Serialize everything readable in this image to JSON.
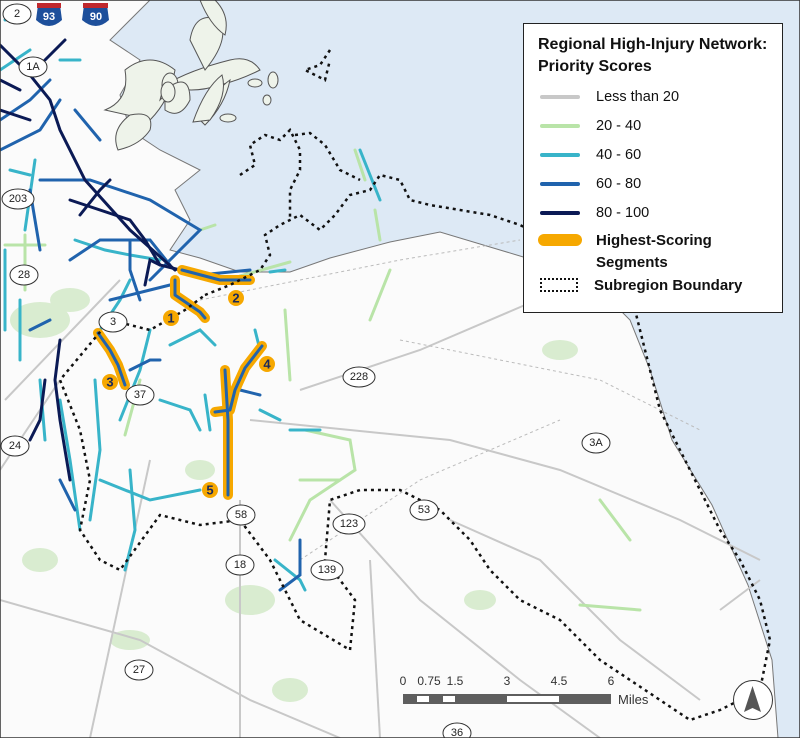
{
  "legend": {
    "title_line1": "Regional High-Injury Network:",
    "title_line2": "Priority Scores",
    "items": [
      {
        "label": "Less than 20",
        "color": "#c8c8c8"
      },
      {
        "label": "20 - 40",
        "color": "#b9e4a8"
      },
      {
        "label": "40 - 60",
        "color": "#38b4c9"
      },
      {
        "label": "60 - 80",
        "color": "#2063ad"
      },
      {
        "label": "80 - 100",
        "color": "#0b1a55"
      }
    ],
    "highest_label_line1": "Highest-Scoring",
    "highest_label_line2": "Segments",
    "highest_color": "#f6a800",
    "boundary_label": "Subregion Boundary"
  },
  "interstates": [
    {
      "label": "93"
    },
    {
      "label": "90"
    }
  ],
  "route_shields": [
    {
      "label": "2"
    },
    {
      "label": "1A"
    },
    {
      "label": "203"
    },
    {
      "label": "28"
    },
    {
      "label": "3"
    },
    {
      "label": "37"
    },
    {
      "label": "24"
    },
    {
      "label": "228"
    },
    {
      "label": "3A"
    },
    {
      "label": "53"
    },
    {
      "label": "58"
    },
    {
      "label": "123"
    },
    {
      "label": "18"
    },
    {
      "label": "139"
    },
    {
      "label": "27"
    },
    {
      "label": "36"
    }
  ],
  "segment_markers": [
    {
      "label": "1"
    },
    {
      "label": "2"
    },
    {
      "label": "3"
    },
    {
      "label": "4"
    },
    {
      "label": "5"
    }
  ],
  "scale_bar": {
    "ticks": [
      "0",
      "0.75",
      "1.5",
      "3",
      "4.5",
      "6"
    ],
    "units": "Miles"
  },
  "north_arrow": "north-arrow-icon",
  "colors": {
    "water": "#dde9f5",
    "land": "#ffffff",
    "park": "#d9ecd0"
  }
}
